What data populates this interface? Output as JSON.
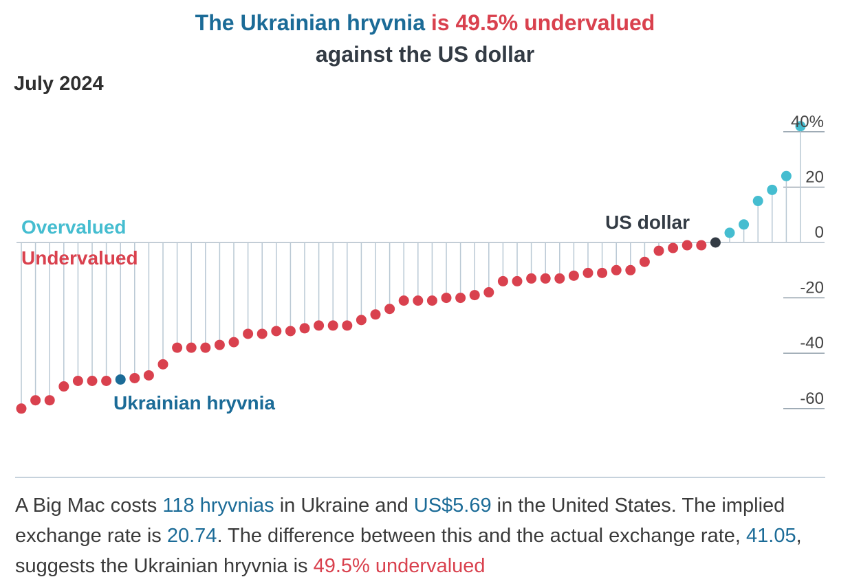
{
  "title": {
    "part1": "The Ukrainian hryvnia",
    "part2": "is 49.5% undervalued",
    "line2": "against the US dollar"
  },
  "subtitle": "July 2024",
  "colors": {
    "over": "#45bdd0",
    "under": "#d9414e",
    "highlight": "#1b6b97",
    "base": "#333b44",
    "stem": "#b9c8d4",
    "axis": "#8a98a5"
  },
  "chart_data": {
    "type": "lollipop",
    "y_axis": {
      "ticks": [
        40,
        20,
        0,
        -20,
        -40,
        -60
      ],
      "tick_labels": [
        "40%",
        "20",
        "0",
        "-20",
        "-40",
        "-60"
      ],
      "ylim": [
        -62,
        45
      ],
      "position": "right"
    },
    "legend_labels": {
      "over": "Overvalued",
      "under": "Undervalued"
    },
    "annotations": {
      "base": "US dollar",
      "highlight": "Ukrainian hryvnia"
    },
    "values": [
      -60,
      -57,
      -57,
      -52,
      -50,
      -50,
      -50,
      -49.5,
      -49,
      -48,
      -44,
      -38,
      -38,
      -38,
      -37,
      -36,
      -33,
      -33,
      -32,
      -32,
      -31,
      -30,
      -30,
      -30,
      -28,
      -26,
      -24,
      -21,
      -21,
      -21,
      -20,
      -20,
      -19,
      -18,
      -14,
      -14,
      -13,
      -13,
      -13,
      -12,
      -11,
      -11,
      -10,
      -10,
      -7,
      -3,
      -2,
      -1,
      -1,
      0,
      3.5,
      6.5,
      15,
      19,
      24,
      42
    ],
    "highlight_index": 7,
    "base_index": 49
  },
  "caption": {
    "s1": "A Big Mac costs ",
    "v1": "118 hryvnias",
    "s2": " in Ukraine and ",
    "v2": "US$5.69",
    "s3": " in the United States. The implied exchange rate is ",
    "v3": "20.74",
    "s4": ". The difference between this and the actual exchange rate, ",
    "v4": "41.05",
    "s5": ", suggests the Ukrainian hryvnia is ",
    "v5": "49.5% undervalued"
  }
}
